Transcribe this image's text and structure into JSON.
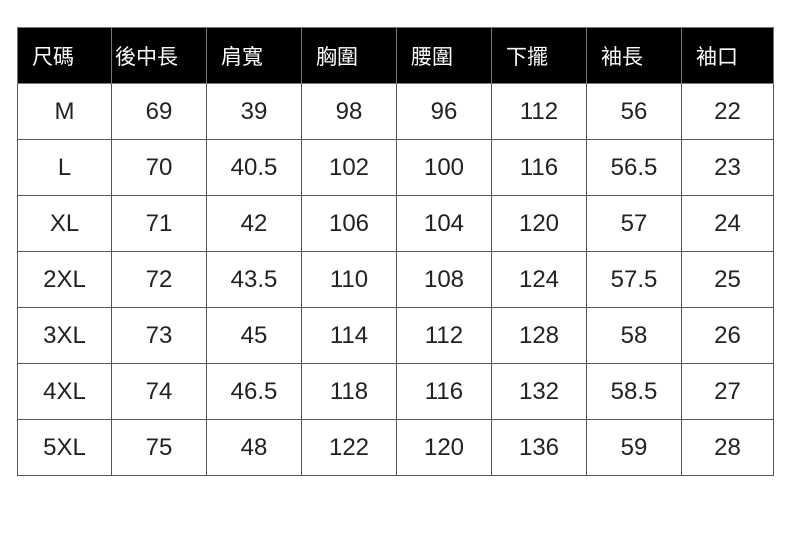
{
  "headers": [
    "尺碼",
    "後中長",
    "肩寬",
    "胸圍",
    "腰圍",
    "下擺",
    "袖長",
    "袖口"
  ],
  "rows": [
    [
      "M",
      "69",
      "39",
      "98",
      "96",
      "112",
      "56",
      "22"
    ],
    [
      "L",
      "70",
      "40.5",
      "102",
      "100",
      "116",
      "56.5",
      "23"
    ],
    [
      "XL",
      "71",
      "42",
      "106",
      "104",
      "120",
      "57",
      "24"
    ],
    [
      "2XL",
      "72",
      "43.5",
      "110",
      "108",
      "124",
      "57.5",
      "25"
    ],
    [
      "3XL",
      "73",
      "45",
      "114",
      "112",
      "128",
      "58",
      "26"
    ],
    [
      "4XL",
      "74",
      "46.5",
      "118",
      "116",
      "132",
      "58.5",
      "27"
    ],
    [
      "5XL",
      "75",
      "48",
      "122",
      "120",
      "136",
      "59",
      "28"
    ]
  ]
}
